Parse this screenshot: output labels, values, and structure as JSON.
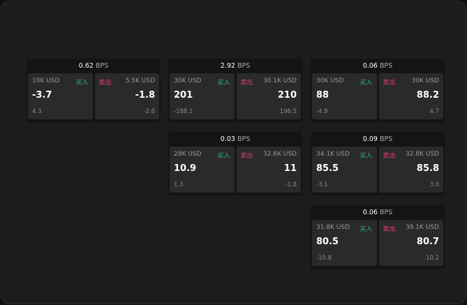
{
  "labels": {
    "buy": "买入",
    "sell": "卖出",
    "unit": "BPS"
  },
  "colors": {
    "buy": "#2eb872",
    "sell": "#e0436e"
  },
  "cards": [
    {
      "spread": "0.62",
      "bid": {
        "size": "10K USD",
        "price": "-3.7",
        "change": "4.3"
      },
      "ask": {
        "size": "5.5K USD",
        "price": "-1.8",
        "change": "-2.6"
      }
    },
    {
      "spread": "2.92",
      "bid": {
        "size": "30K USD",
        "price": "201",
        "change": "-188.1"
      },
      "ask": {
        "size": "30.1K USD",
        "price": "210",
        "change": "196.5"
      }
    },
    {
      "spread": "0.06",
      "bid": {
        "size": "30K USD",
        "price": "88",
        "change": "-4.9"
      },
      "ask": {
        "size": "30K USD",
        "price": "88.2",
        "change": "4.7"
      }
    },
    {
      "spread": "0.03",
      "bid": {
        "size": "28K USD",
        "price": "10.9",
        "change": "1.3"
      },
      "ask": {
        "size": "32.6K USD",
        "price": "11",
        "change": "-1.8"
      }
    },
    {
      "spread": "0.09",
      "bid": {
        "size": "34.1K USD",
        "price": "85.5",
        "change": "-3.1"
      },
      "ask": {
        "size": "32.8K USD",
        "price": "85.8",
        "change": "3.0"
      }
    },
    {
      "spread": "0.06",
      "bid": {
        "size": "31.8K USD",
        "price": "80.5",
        "change": "-10.8"
      },
      "ask": {
        "size": "39.1K USD",
        "price": "80.7",
        "change": "10.2"
      }
    }
  ]
}
